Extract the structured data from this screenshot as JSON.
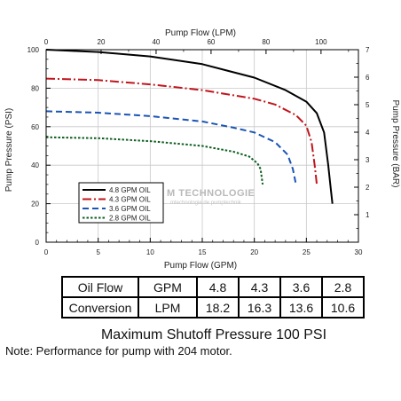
{
  "chart_data": {
    "type": "line",
    "top_xlabel": "Pump Flow (LPM)",
    "xlabel": "Pump Flow (GPM)",
    "ylabel": "Pump Pressure (PSI)",
    "y2label": "Pump Pressure (BAR)",
    "xlim": [
      0,
      30
    ],
    "ylim": [
      0,
      100
    ],
    "x2lim": [
      0,
      113.6
    ],
    "y2lim": [
      0,
      7.0
    ],
    "x_ticks": [
      0,
      5,
      10,
      15,
      20,
      25,
      30
    ],
    "y_ticks": [
      0,
      20,
      40,
      60,
      80,
      100
    ],
    "x2_ticks": [
      0,
      20,
      40,
      60,
      80,
      100
    ],
    "y2_ticks": [
      1,
      2,
      3,
      4,
      5,
      6,
      7
    ],
    "grid": true,
    "legend_position": "lower-left",
    "series": [
      {
        "name": "4.8 GPM OIL",
        "color": "#000000",
        "dash": "solid",
        "points": [
          [
            0,
            100
          ],
          [
            5,
            98.8
          ],
          [
            10,
            96.5
          ],
          [
            15,
            92.5
          ],
          [
            20,
            85.5
          ],
          [
            23,
            79
          ],
          [
            25,
            73
          ],
          [
            26,
            67
          ],
          [
            26.7,
            57
          ],
          [
            27.1,
            40
          ],
          [
            27.3,
            30
          ],
          [
            27.5,
            20
          ]
        ]
      },
      {
        "name": "4.3 GPM OIL",
        "color": "#c0151b",
        "dash": "dashdot",
        "points": [
          [
            0,
            85
          ],
          [
            5,
            84.2
          ],
          [
            10,
            82
          ],
          [
            15,
            79
          ],
          [
            20,
            74.5
          ],
          [
            22,
            71.5
          ],
          [
            24,
            66
          ],
          [
            25,
            60.5
          ],
          [
            25.5,
            52
          ],
          [
            25.8,
            40
          ],
          [
            26,
            30
          ]
        ]
      },
      {
        "name": "3.6 GPM OIL",
        "color": "#1a54b5",
        "dash": "dash",
        "points": [
          [
            0,
            68
          ],
          [
            5,
            67.3
          ],
          [
            10,
            65.5
          ],
          [
            15,
            62.7
          ],
          [
            18,
            59.5
          ],
          [
            20,
            57
          ],
          [
            22,
            52
          ],
          [
            23.2,
            45.5
          ],
          [
            23.7,
            38
          ],
          [
            24,
            30
          ]
        ]
      },
      {
        "name": "2.8 GPM OIL",
        "color": "#0d5e1f",
        "dash": "dot",
        "points": [
          [
            0,
            54.5
          ],
          [
            5,
            54
          ],
          [
            10,
            52.5
          ],
          [
            15,
            50
          ],
          [
            18,
            47
          ],
          [
            19.5,
            44.5
          ],
          [
            20.3,
            41
          ],
          [
            20.6,
            38
          ],
          [
            20.8,
            30
          ]
        ]
      }
    ]
  },
  "conversion_table": {
    "rows": [
      {
        "label": "Oil Flow",
        "unit": "GPM",
        "values": [
          "4.8",
          "4.3",
          "3.6",
          "2.8"
        ]
      },
      {
        "label": "Conversion",
        "unit": "LPM",
        "values": [
          "18.2",
          "16.3",
          "13.6",
          "10.6"
        ]
      }
    ]
  },
  "caption": "Maximum Shutoff Pressure  100 PSI",
  "note": "Note: Performance for pump with 204 motor.",
  "watermark": "M TECHNOLOGIE",
  "watermark_sub": "mtechnologie.de pumptechnik"
}
